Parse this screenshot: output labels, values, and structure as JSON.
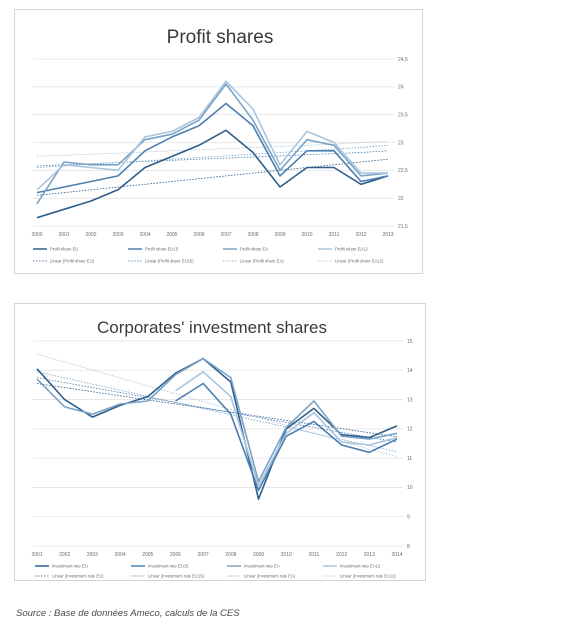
{
  "chart_data": [
    {
      "type": "line",
      "title": "Profit shares",
      "x": [
        "2000",
        "2001",
        "2002",
        "2003",
        "2004",
        "2005",
        "2006",
        "2007",
        "2008",
        "2009",
        "2010",
        "2011",
        "2012",
        "2013"
      ],
      "ylim": [
        21.5,
        24.5
      ],
      "yticks": [
        "21,5",
        "22",
        "22,5",
        "23",
        "23,5",
        "24",
        "24,5"
      ],
      "grid": true,
      "legend_position": "bottom",
      "series": [
        {
          "name": "Profit share EU",
          "color": "#2f5f8a",
          "width": 1.6,
          "values": [
            21.65,
            21.8,
            21.95,
            22.15,
            22.55,
            22.75,
            22.95,
            23.22,
            22.82,
            22.2,
            22.55,
            22.55,
            22.25,
            22.4
          ]
        },
        {
          "name": "Profit share EU15",
          "color": "#4a7fb0",
          "width": 1.6,
          "values": [
            22.1,
            22.2,
            22.3,
            22.4,
            22.85,
            23.1,
            23.3,
            23.7,
            23.3,
            22.4,
            22.85,
            22.85,
            22.3,
            22.4
          ]
        },
        {
          "name": "Profit share EA",
          "color": "#7aa3c8",
          "width": 1.6,
          "values": [
            21.9,
            22.65,
            22.6,
            22.6,
            23.05,
            23.15,
            23.4,
            24.05,
            23.4,
            22.5,
            23.05,
            22.95,
            22.4,
            22.45
          ]
        },
        {
          "name": "Profit share EA12",
          "color": "#a9c4de",
          "width": 1.6,
          "values": [
            22.15,
            22.6,
            22.55,
            22.5,
            23.1,
            23.2,
            23.45,
            24.1,
            23.6,
            22.6,
            23.2,
            23.0,
            22.45,
            22.45
          ]
        },
        {
          "name": "Linear (Profit share EU)",
          "color": "#2f5f8a",
          "dash": true,
          "values": [
            22.05,
            22.1,
            22.15,
            22.2,
            22.25,
            22.3,
            22.35,
            22.4,
            22.45,
            22.5,
            22.55,
            22.6,
            22.65,
            22.7
          ]
        },
        {
          "name": "Linear (Profit share EU15)",
          "color": "#4a7fb0",
          "dash": true,
          "values": [
            22.58,
            22.6,
            22.62,
            22.64,
            22.66,
            22.68,
            22.7,
            22.72,
            22.74,
            22.76,
            22.78,
            22.8,
            22.82,
            22.85
          ]
        },
        {
          "name": "Linear (Profit share EA)",
          "color": "#7aa3c8",
          "dash": true,
          "values": [
            22.55,
            22.58,
            22.61,
            22.64,
            22.67,
            22.7,
            22.73,
            22.76,
            22.79,
            22.82,
            22.85,
            22.88,
            22.91,
            22.95
          ]
        },
        {
          "name": "Linear (Profit share EA12)",
          "color": "#a9c4de",
          "dash": true,
          "values": [
            22.75,
            22.77,
            22.79,
            22.81,
            22.83,
            22.85,
            22.87,
            22.89,
            22.91,
            22.93,
            22.95,
            22.97,
            23.0,
            23.02
          ]
        }
      ]
    },
    {
      "type": "line",
      "title": "Corporates' investment shares",
      "x": [
        "2001",
        "2002",
        "2003",
        "2004",
        "2005",
        "2006",
        "2007",
        "2008",
        "2009",
        "2010",
        "2011",
        "2012",
        "2013",
        "2014"
      ],
      "ylim": [
        8,
        15
      ],
      "yticks": [
        "8",
        "9",
        "10",
        "11",
        "12",
        "13",
        "14",
        "15"
      ],
      "grid": true,
      "legend_position": "bottom",
      "series": [
        {
          "name": "Investment rate EU",
          "color": "#2f5f8a",
          "width": 1.6,
          "values": [
            14.05,
            13.0,
            12.4,
            12.8,
            13.1,
            13.9,
            14.4,
            13.6,
            9.6,
            12.0,
            12.7,
            11.8,
            11.7,
            12.1
          ]
        },
        {
          "name": "Investment rate EU15",
          "color": "#4a7fb0",
          "width": 1.6,
          "values": [
            null,
            null,
            null,
            null,
            null,
            12.95,
            13.55,
            12.5,
            9.9,
            11.75,
            12.25,
            11.45,
            11.2,
            11.65
          ]
        },
        {
          "name": "Investment rate EA",
          "color": "#7aa3c8",
          "width": 1.6,
          "values": [
            13.7,
            12.75,
            12.5,
            12.85,
            12.95,
            13.85,
            14.4,
            13.75,
            10.2,
            12.05,
            12.95,
            11.75,
            11.65,
            11.85
          ]
        },
        {
          "name": "Investment rate EA12",
          "color": "#a9c4de",
          "width": 1.6,
          "values": [
            null,
            null,
            null,
            null,
            null,
            13.3,
            13.95,
            13.1,
            10.05,
            11.85,
            12.55,
            11.55,
            11.45,
            11.7
          ]
        },
        {
          "name": "Linear (Investment rate EU)",
          "color": "#2f5f8a",
          "dash": true,
          "values": [
            13.55,
            13.41,
            13.27,
            13.13,
            12.99,
            12.85,
            12.71,
            12.57,
            12.43,
            12.29,
            12.15,
            12.01,
            11.87,
            11.73
          ]
        },
        {
          "name": "Linear (Investment rate EU15)",
          "color": "#4a7fb0",
          "dash": true,
          "values": [
            13.75,
            13.58,
            13.41,
            13.24,
            13.07,
            12.9,
            12.73,
            12.56,
            12.39,
            12.22,
            12.05,
            11.88,
            11.71,
            11.55
          ]
        },
        {
          "name": "Linear (Investment rate EA)",
          "color": "#7aa3c8",
          "dash": true,
          "values": [
            13.95,
            13.74,
            13.53,
            13.32,
            13.11,
            12.9,
            12.69,
            12.48,
            12.27,
            12.06,
            11.85,
            11.64,
            11.43,
            11.22
          ]
        },
        {
          "name": "Linear (Investment rate EA12)",
          "color": "#a9c4de",
          "dash": true,
          "values": [
            14.55,
            14.28,
            14.01,
            13.74,
            13.47,
            13.2,
            12.93,
            12.66,
            12.39,
            12.12,
            11.85,
            11.58,
            11.31,
            11.05
          ]
        }
      ]
    }
  ],
  "source_text": "Source : Base de données Ameco, calculs de la CES"
}
